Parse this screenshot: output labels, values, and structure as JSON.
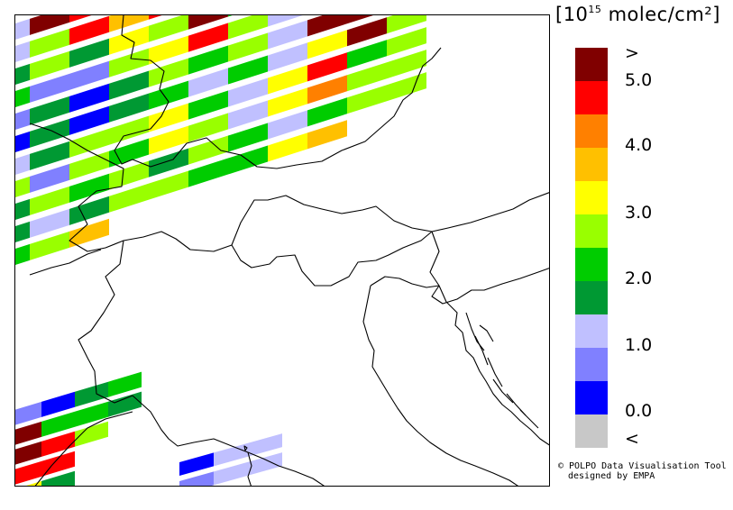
{
  "legend": {
    "unit_prefix": "[10",
    "unit_exponent": "15",
    "unit_suffix": " molec/cm²]",
    "classes": [
      {
        "color": "#800000"
      },
      {
        "color": "#ff0000"
      },
      {
        "color": "#ff8000"
      },
      {
        "color": "#ffc000"
      },
      {
        "color": "#ffff00"
      },
      {
        "color": "#99ff00"
      },
      {
        "color": "#00cc00"
      },
      {
        "color": "#009933"
      },
      {
        "color": "#c0c0ff"
      },
      {
        "color": "#8080ff"
      },
      {
        "color": "#0000ff"
      },
      {
        "color": "#c8c8c8"
      }
    ],
    "labels": [
      ">",
      "5.0",
      "4.0",
      "3.0",
      "2.0",
      "1.0",
      "0.0",
      "<"
    ]
  },
  "credit": {
    "line1": "© POLPO Data Visualisation Tool",
    "line2": "designed by EMPA"
  },
  "map": {
    "swath_rows": [
      [
        "#c0c0ff",
        "#800000",
        "#ff0000",
        "#ffc000",
        "#ff0000",
        "#ffc000",
        "#8080ff",
        "#800000",
        "#ffff00",
        "#ffc000",
        "#00cc00"
      ],
      [
        "#c0c0ff",
        "#99ff00",
        "#ff0000",
        "#ffc000",
        "#ff0000",
        "#ffc000",
        "#8080ff",
        "#800000",
        "#ffff00",
        "#ffc000",
        "#00cc00"
      ],
      [
        "#009933",
        "#99ff00",
        "#009933",
        "#ffff00",
        "#99ff00",
        "#800000",
        "#00cc00",
        "#c0c0ff",
        "#800000",
        "#ff8000",
        "#00cc00"
      ],
      [
        "#00cc00",
        "#8080ff",
        "#8080ff",
        "#99ff00",
        "#ffff00",
        "#ff0000",
        "#99ff00",
        "#c0c0ff",
        "#ff0000",
        "#ffc000",
        "#ffc000"
      ],
      [
        "#8080ff",
        "#009933",
        "#0000ff",
        "#009933",
        "#99ff00",
        "#00cc00",
        "#99ff00",
        "#c0c0ff",
        "#800000",
        "#800000",
        "#99ff00"
      ],
      [
        "#0000ff",
        "#009933",
        "#0000ff",
        "#009933",
        "#00cc00",
        "#c0c0ff",
        "#00cc00",
        "#c0c0ff",
        "#ffff00",
        "#800000",
        "#99ff00"
      ],
      [
        "#c0c0ff",
        "#009933",
        "#99ff00",
        "#99ff00",
        "#ffff00",
        "#00cc00",
        "#c0c0ff",
        "#ffff00",
        "#ff0000",
        "#00cc00",
        "#99ff00"
      ],
      [
        "#99ff00",
        "#8080ff",
        "#99ff00",
        "#00cc00",
        "#ffff00",
        "#99ff00",
        "#c0c0ff",
        "#ffff00",
        "#ff8000",
        "#99ff00",
        "#99ff00"
      ],
      [
        "#009933",
        "#99ff00",
        "#00cc00",
        "#99ff00",
        "#009933",
        "#99ff00",
        "#00cc00",
        "#c0c0ff",
        "#00cc00",
        "#99ff00",
        "#99ff00"
      ],
      [
        "#009933",
        "#c0c0ff",
        "#009933",
        "#99ff00",
        "#99ff00",
        "#00cc00",
        "#00cc00",
        "#ffff00",
        "#ffc000"
      ],
      [
        "#00cc00",
        "#99ff00",
        "#ffc000"
      ]
    ],
    "swath2_rows": [
      [
        "#8080ff",
        "#0000ff",
        "#009933",
        "#00cc00"
      ],
      [
        "#800000",
        "#00cc00",
        "#00cc00",
        "#009933"
      ],
      [
        "#800000",
        "#ff0000",
        "#99ff00"
      ],
      [
        "#ff0000",
        "#ff0000"
      ],
      [
        "#ffff00",
        "#009933"
      ]
    ],
    "swath3_rows": [
      [
        "#0000ff",
        "#c0c0ff",
        "#c0c0ff"
      ],
      [
        "#8080ff",
        "#c0c0ff",
        "#c0c0ff"
      ]
    ]
  }
}
